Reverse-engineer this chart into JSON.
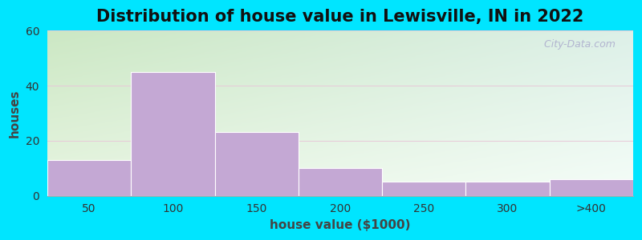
{
  "title": "Distribution of house value in Lewisville, IN in 2022",
  "xlabel": "house value ($1000)",
  "ylabel": "houses",
  "bar_labels": [
    "50",
    "100",
    "150",
    "200",
    "250",
    "300",
    ">400"
  ],
  "bar_values": [
    13,
    45,
    23,
    10,
    5,
    5,
    6
  ],
  "bar_color": "#c4a8d4",
  "ylim": [
    0,
    60
  ],
  "yticks": [
    0,
    20,
    40,
    60
  ],
  "background_outer": "#00e5ff",
  "gradient_top_left": "#d4edd0",
  "gradient_bottom_right": "#e8f5f0",
  "title_fontsize": 15,
  "axis_label_fontsize": 11,
  "tick_fontsize": 10,
  "watermark_text": " City-Data.com"
}
